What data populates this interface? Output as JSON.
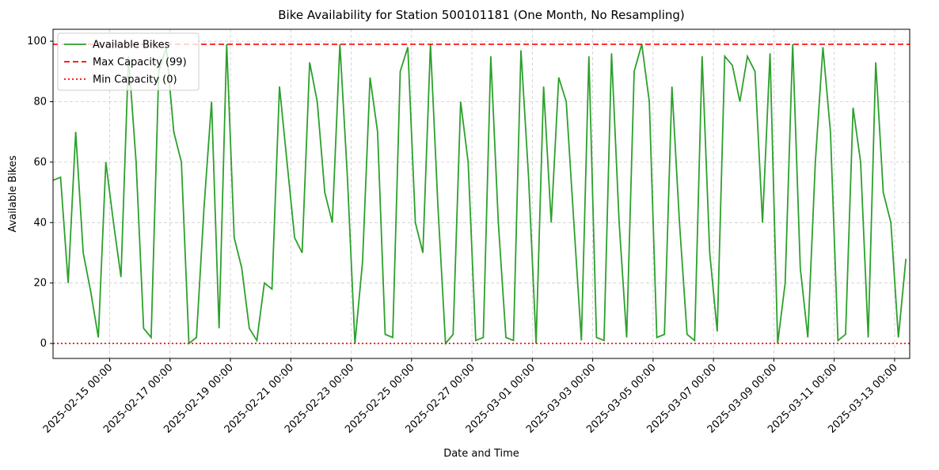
{
  "chart_data": {
    "type": "line",
    "title": "Bike Availability for Station 500101181 (One Month, No Resampling)",
    "x_label": "Date and Time",
    "y_label": "Available Bikes",
    "x": [
      "2025-02-13 03:00",
      "2025-02-13 09:00",
      "2025-02-13 15:00",
      "2025-02-13 21:00",
      "2025-02-14 03:00",
      "2025-02-14 09:00",
      "2025-02-14 15:00",
      "2025-02-14 21:00",
      "2025-02-15 03:00",
      "2025-02-15 09:00",
      "2025-02-15 15:00",
      "2025-02-15 21:00",
      "2025-02-16 03:00",
      "2025-02-16 09:00",
      "2025-02-16 15:00",
      "2025-02-16 21:00",
      "2025-02-17 03:00",
      "2025-02-17 09:00",
      "2025-02-17 15:00",
      "2025-02-17 21:00",
      "2025-02-18 03:00",
      "2025-02-18 09:00",
      "2025-02-18 15:00",
      "2025-02-18 21:00",
      "2025-02-19 03:00",
      "2025-02-19 09:00",
      "2025-02-19 15:00",
      "2025-02-19 21:00",
      "2025-02-20 03:00",
      "2025-02-20 09:00",
      "2025-02-20 15:00",
      "2025-02-20 21:00",
      "2025-02-21 03:00",
      "2025-02-21 09:00",
      "2025-02-21 15:00",
      "2025-02-21 21:00",
      "2025-02-22 03:00",
      "2025-02-22 09:00",
      "2025-02-22 15:00",
      "2025-02-22 21:00",
      "2025-02-23 03:00",
      "2025-02-23 09:00",
      "2025-02-23 15:00",
      "2025-02-23 21:00",
      "2025-02-24 03:00",
      "2025-02-24 09:00",
      "2025-02-24 15:00",
      "2025-02-24 21:00",
      "2025-02-25 03:00",
      "2025-02-25 09:00",
      "2025-02-25 15:00",
      "2025-02-25 21:00",
      "2025-02-26 03:00",
      "2025-02-26 09:00",
      "2025-02-26 15:00",
      "2025-02-26 21:00",
      "2025-02-27 03:00",
      "2025-02-27 09:00",
      "2025-02-27 15:00",
      "2025-02-27 21:00",
      "2025-02-28 03:00",
      "2025-02-28 09:00",
      "2025-02-28 15:00",
      "2025-02-28 21:00",
      "2025-03-01 03:00",
      "2025-03-01 09:00",
      "2025-03-01 15:00",
      "2025-03-01 21:00",
      "2025-03-02 03:00",
      "2025-03-02 09:00",
      "2025-03-02 15:00",
      "2025-03-02 21:00",
      "2025-03-03 03:00",
      "2025-03-03 09:00",
      "2025-03-03 15:00",
      "2025-03-03 21:00",
      "2025-03-04 03:00",
      "2025-03-04 09:00",
      "2025-03-04 15:00",
      "2025-03-04 21:00",
      "2025-03-05 03:00",
      "2025-03-05 09:00",
      "2025-03-05 15:00",
      "2025-03-05 21:00",
      "2025-03-06 03:00",
      "2025-03-06 09:00",
      "2025-03-06 15:00",
      "2025-03-06 21:00",
      "2025-03-07 03:00",
      "2025-03-07 09:00",
      "2025-03-07 15:00",
      "2025-03-07 21:00",
      "2025-03-08 03:00",
      "2025-03-08 09:00",
      "2025-03-08 15:00",
      "2025-03-08 21:00",
      "2025-03-09 03:00",
      "2025-03-09 09:00",
      "2025-03-09 15:00",
      "2025-03-09 21:00",
      "2025-03-10 03:00",
      "2025-03-10 09:00",
      "2025-03-10 15:00",
      "2025-03-10 21:00",
      "2025-03-11 03:00",
      "2025-03-11 09:00",
      "2025-03-11 15:00",
      "2025-03-11 21:00",
      "2025-03-12 03:00",
      "2025-03-12 09:00",
      "2025-03-12 15:00",
      "2025-03-12 21:00",
      "2025-03-13 03:00",
      "2025-03-13 09:00"
    ],
    "series": [
      {
        "name": "Available Bikes",
        "color": "#2ca02c",
        "values": [
          54,
          55,
          20,
          70,
          30,
          17,
          2,
          60,
          40,
          22,
          95,
          60,
          5,
          2,
          90,
          98,
          70,
          60,
          0,
          2,
          45,
          80,
          5,
          99,
          35,
          25,
          5,
          1,
          20,
          18,
          85,
          60,
          35,
          30,
          93,
          80,
          50,
          40,
          99,
          55,
          0,
          27,
          88,
          70,
          3,
          2,
          90,
          98,
          40,
          30,
          99,
          45,
          0,
          3,
          80,
          60,
          1,
          2,
          95,
          40,
          2,
          1,
          97,
          55,
          0,
          85,
          40,
          88,
          80,
          40,
          1,
          95,
          2,
          1,
          96,
          40,
          2,
          90,
          99,
          80,
          2,
          3,
          85,
          40,
          3,
          1,
          95,
          30,
          4,
          95,
          92,
          80,
          95,
          90,
          40,
          96,
          0,
          20,
          99,
          25,
          2,
          60,
          98,
          70,
          1,
          3,
          78,
          60,
          2,
          93,
          50,
          40,
          2,
          28
        ]
      }
    ],
    "hlines": [
      {
        "name": "Max Capacity (99)",
        "value": 99,
        "color": "#ff0000",
        "style": "dashed"
      },
      {
        "name": "Min Capacity (0)",
        "value": 0,
        "color": "#ff0000",
        "style": "dotted"
      }
    ],
    "xlim": [
      "2025-02-13 03:00",
      "2025-03-13 12:00"
    ],
    "xticks": [
      "2025-02-15 00:00",
      "2025-02-17 00:00",
      "2025-02-19 00:00",
      "2025-02-21 00:00",
      "2025-02-23 00:00",
      "2025-02-25 00:00",
      "2025-02-27 00:00",
      "2025-03-01 00:00",
      "2025-03-03 00:00",
      "2025-03-05 00:00",
      "2025-03-07 00:00",
      "2025-03-09 00:00",
      "2025-03-11 00:00",
      "2025-03-13 00:00"
    ],
    "ylim": [
      -4.95,
      103.95
    ],
    "yticks": [
      0,
      20,
      40,
      60,
      80,
      100
    ],
    "grid": true,
    "legend": "upper-left"
  }
}
